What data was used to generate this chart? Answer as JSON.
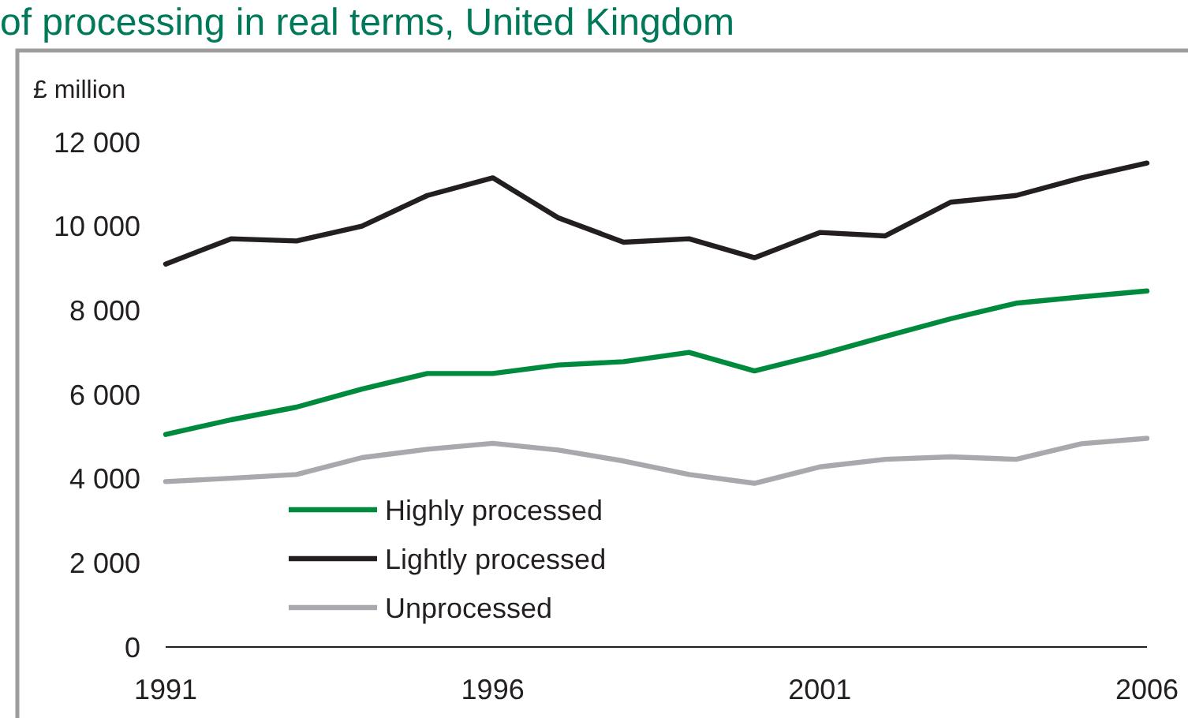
{
  "chart_data": {
    "type": "line",
    "title": "of processing in real terms, United Kingdom",
    "ylabel": "£ million",
    "x": [
      1991,
      1992,
      1993,
      1994,
      1995,
      1996,
      1997,
      1998,
      1999,
      2000,
      2001,
      2002,
      2003,
      2004,
      2005,
      2006
    ],
    "series": [
      {
        "name": "Highly processed",
        "color": "#008a3e",
        "values": [
          5050,
          5400,
          5700,
          6130,
          6500,
          6500,
          6700,
          6780,
          7000,
          6560,
          6950,
          7380,
          7800,
          8170,
          8320,
          8460
        ]
      },
      {
        "name": "Lightly processed",
        "color": "#231f20",
        "values": [
          9100,
          9700,
          9650,
          10000,
          10730,
          11150,
          10200,
          9620,
          9700,
          9250,
          9850,
          9770,
          10570,
          10730,
          11150,
          11500
        ]
      },
      {
        "name": "Unprocessed",
        "color": "#a7a9ac",
        "values": [
          3930,
          4010,
          4100,
          4500,
          4700,
          4840,
          4680,
          4420,
          4100,
          3890,
          4280,
          4460,
          4520,
          4460,
          4830,
          4960
        ]
      }
    ],
    "xlim": [
      1991,
      2006
    ],
    "xticks": [
      1991,
      1996,
      2001,
      2006
    ],
    "ylim": [
      0,
      12000
    ],
    "yticks": [
      0,
      {
        "value": 2000,
        "label": "2 000"
      },
      {
        "value": 4000,
        "label": "4 000"
      },
      {
        "value": 6000,
        "label": "6 000"
      },
      {
        "value": 8000,
        "label": "8 000"
      },
      {
        "value": 10000,
        "label": "10 000"
      },
      {
        "value": 12000,
        "label": "12 000"
      }
    ],
    "legend": "bottom left"
  }
}
